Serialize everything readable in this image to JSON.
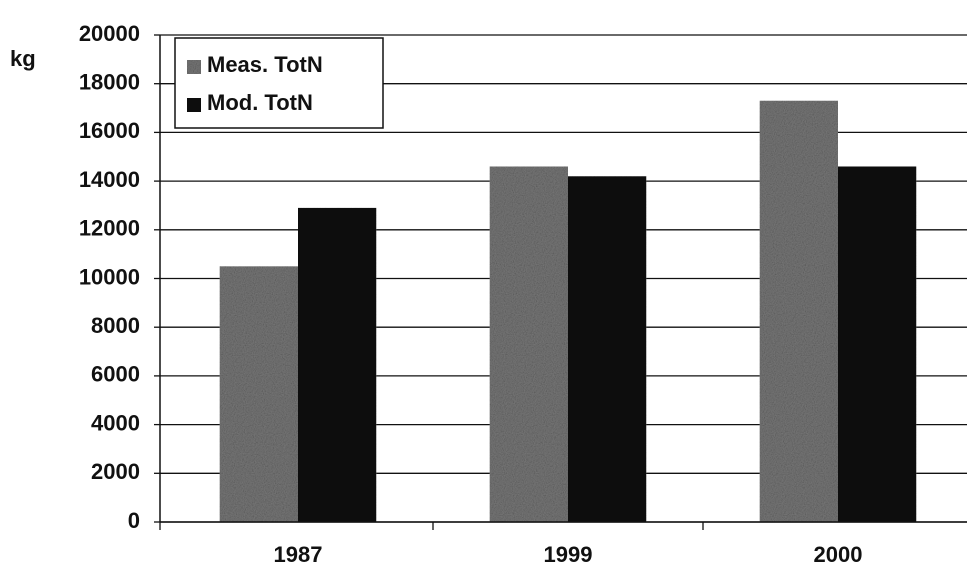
{
  "chart_data": {
    "type": "bar",
    "y_label": "kg",
    "categories": [
      "1987",
      "1999",
      "2000"
    ],
    "series": [
      {
        "name": "Meas. TotN",
        "color": "#7a7a7a",
        "values": [
          10500,
          14600,
          17300
        ]
      },
      {
        "name": "Mod. TotN",
        "color": "#121212",
        "values": [
          12900,
          14200,
          14600
        ]
      }
    ],
    "ylim": [
      0,
      20000
    ],
    "yticks": [
      0,
      2000,
      4000,
      6000,
      8000,
      10000,
      12000,
      14000,
      16000,
      18000,
      20000
    ],
    "grid": true,
    "legend": "upper left"
  }
}
